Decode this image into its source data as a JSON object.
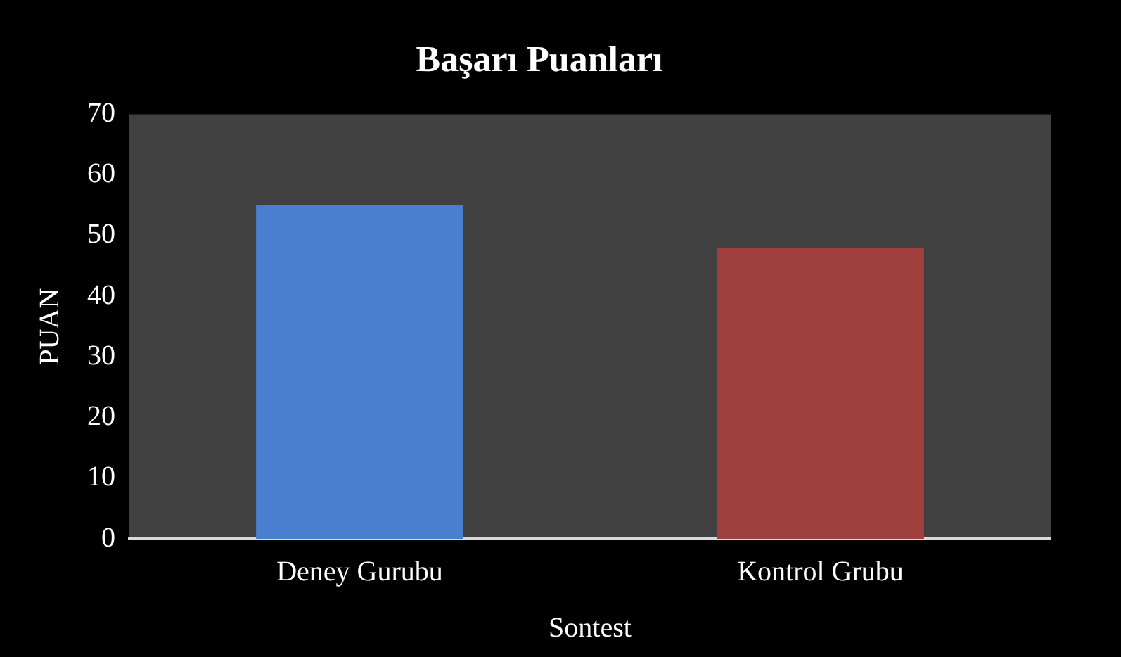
{
  "chart_data": {
    "type": "bar",
    "title": "Başarı Puanları",
    "xlabel": "Sontest",
    "ylabel": "PUAN",
    "categories": [
      "Deney Gurubu",
      "Kontrol Grubu"
    ],
    "values": [
      55,
      48
    ],
    "colors": [
      "#4a7fd0",
      "#a0403e"
    ],
    "ylim": [
      0,
      70
    ],
    "yticks": [
      0,
      10,
      20,
      30,
      40,
      50,
      60,
      70
    ],
    "grid": false,
    "legend": false
  }
}
